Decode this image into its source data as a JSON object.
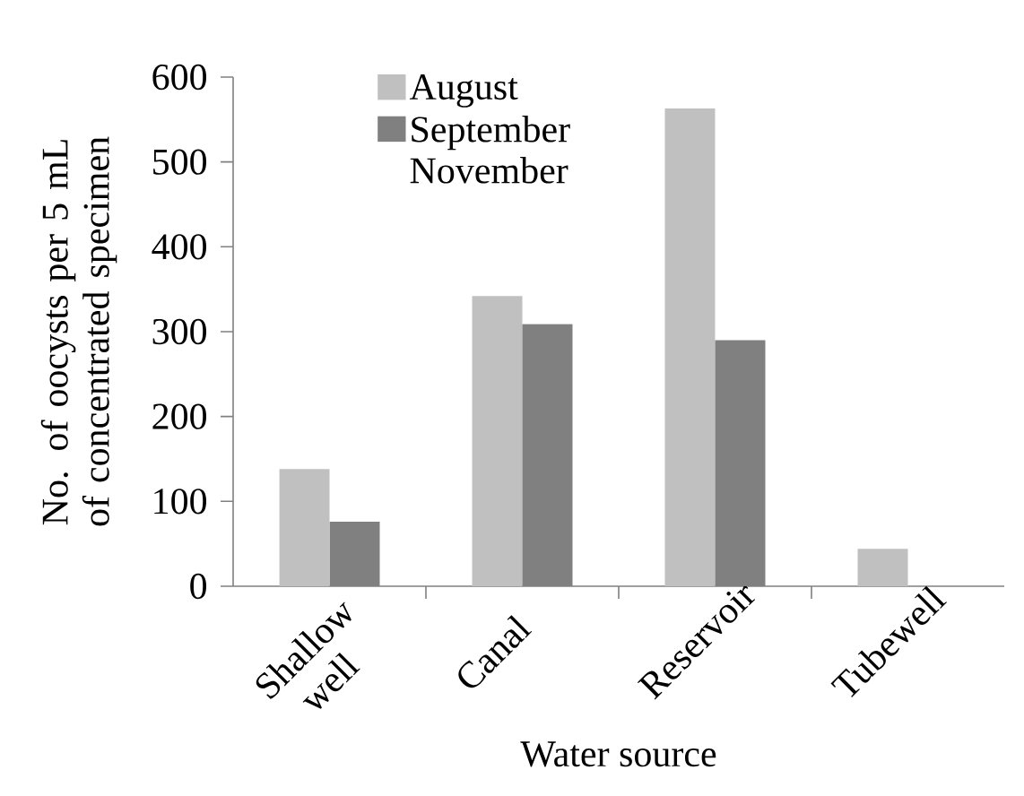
{
  "chart_data": {
    "type": "bar",
    "xlabel": "Water source",
    "ylabel": "No. of oocysts per 5 mL of concentrated specimen",
    "categories": [
      "Shallow well",
      "Canal",
      "Reservoir",
      "Tubewell"
    ],
    "series": [
      {
        "name": "August",
        "color": "#c0c0c0",
        "values": [
          138,
          342,
          563,
          44
        ]
      },
      {
        "name": "September November",
        "color": "#808080",
        "values": [
          76,
          309,
          290,
          null
        ]
      }
    ],
    "ylim": [
      0,
      600
    ],
    "yticks": [
      0,
      100,
      200,
      300,
      400,
      500,
      600
    ],
    "grid": false,
    "legend": "top left"
  }
}
